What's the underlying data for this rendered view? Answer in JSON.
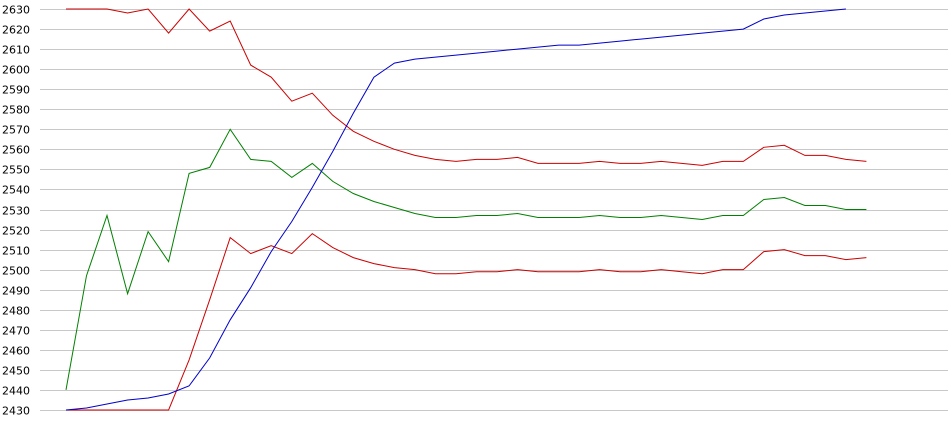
{
  "chart_data": {
    "type": "line",
    "title": "",
    "xlabel": "",
    "ylabel": "",
    "grid": true,
    "legend": "none",
    "x_count": 43,
    "ylim": [
      2430,
      2630
    ],
    "y_ticks": [
      "2630",
      "2620",
      "2610",
      "2600",
      "2590",
      "2580",
      "2570",
      "2560",
      "2550",
      "2540",
      "2530",
      "2520",
      "2510",
      "2500",
      "2490",
      "2480",
      "2470",
      "2460",
      "2450",
      "2440",
      "2430"
    ],
    "series": [
      {
        "color": "#cc0000",
        "values": [
          2630,
          2630,
          2630,
          2628,
          2630,
          2618,
          2630,
          2619,
          2624,
          2602,
          2596,
          2584,
          2588,
          2577,
          2569,
          2564,
          2560,
          2557,
          2555,
          2554,
          2555,
          2555,
          2556,
          2553,
          2553,
          2553,
          2554,
          2553,
          2553,
          2554,
          2553,
          2552,
          2554,
          2554,
          2561,
          2562,
          2557,
          2557,
          2555,
          2554
        ]
      },
      {
        "color": "#008000",
        "values": [
          2440,
          2497,
          2527,
          2488,
          2519,
          2504,
          2548,
          2551,
          2570,
          2555,
          2554,
          2546,
          2553,
          2544,
          2538,
          2534,
          2531,
          2528,
          2526,
          2526,
          2527,
          2527,
          2528,
          2526,
          2526,
          2526,
          2527,
          2526,
          2526,
          2527,
          2526,
          2525,
          2527,
          2527,
          2535,
          2536,
          2532,
          2532,
          2530,
          2530
        ]
      },
      {
        "color": "#cc0000",
        "values": [
          2430,
          2430,
          2430,
          2430,
          2430,
          2430,
          2455,
          2485,
          2516,
          2508,
          2512,
          2508,
          2518,
          2511,
          2506,
          2503,
          2501,
          2500,
          2498,
          2498,
          2499,
          2499,
          2500,
          2499,
          2499,
          2499,
          2500,
          2499,
          2499,
          2500,
          2499,
          2498,
          2500,
          2500,
          2509,
          2510,
          2507,
          2507,
          2505,
          2506
        ]
      },
      {
        "color": "#0000cc",
        "values": [
          2430,
          2431,
          2433,
          2435,
          2436,
          2438,
          2442,
          2456,
          2475,
          2491,
          2509,
          2524,
          2541,
          2559,
          2578,
          2596,
          2603,
          2605,
          2606,
          2607,
          2608,
          2609,
          2610,
          2611,
          2612,
          2612,
          2613,
          2614,
          2615,
          2616,
          2617,
          2618,
          2619,
          2620,
          2625,
          2627,
          2628,
          2629,
          2630
        ]
      }
    ]
  }
}
